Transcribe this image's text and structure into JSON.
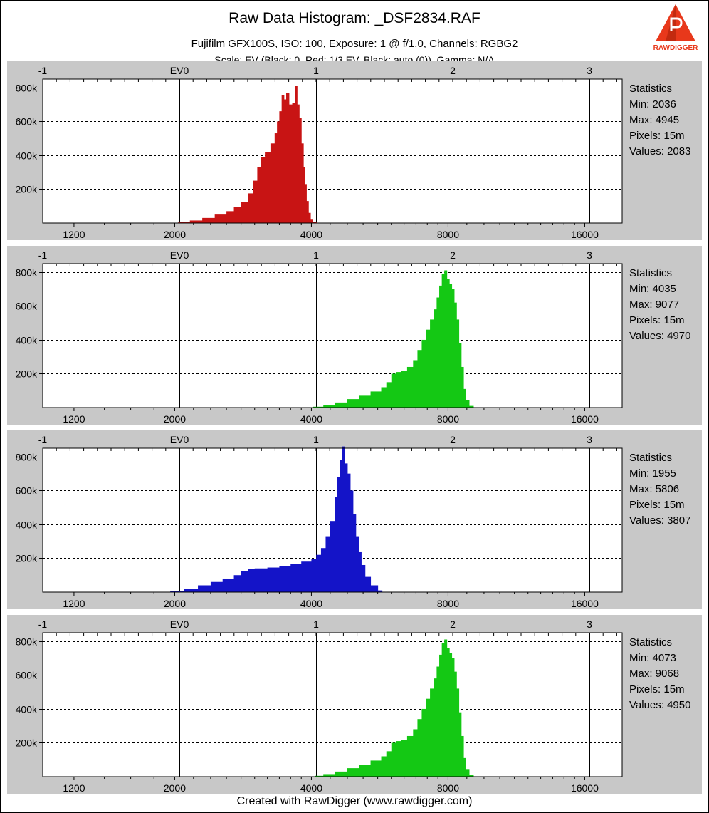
{
  "title": "Raw Data Histogram: _DSF2834.RAF",
  "subtitle": "Fujifilm GFX100S, ISO: 100, Exposure: 1 @ f/1.0, Channels: RGBG2",
  "footer": "Created with RawDigger (www.rawdigger.com)",
  "logo": {
    "text": "RAWDIGGER",
    "accent": "#e8381b"
  },
  "colors": {
    "panel_bg": "#c8c8c8",
    "red": "#c81414",
    "green": "#14c814",
    "blue": "#1414c8"
  },
  "chart_data": [
    {
      "type": "bar",
      "channel": "R",
      "color": "#c81414",
      "x_scale": "log2",
      "xticks": [
        "1200",
        "2000",
        "4000",
        "8000",
        "16000"
      ],
      "ev_ticks": [
        "-1",
        "EV0",
        "1",
        "2",
        "3"
      ],
      "yticks": [
        "200k",
        "400k",
        "600k",
        "800k"
      ],
      "ylim": [
        0,
        850000
      ],
      "x": [
        2036,
        2160,
        2300,
        2450,
        2600,
        2700,
        2800,
        2900,
        2980,
        3040,
        3100,
        3160,
        3250,
        3320,
        3360,
        3400,
        3440,
        3480,
        3520,
        3570,
        3630,
        3680,
        3720,
        3760,
        3800,
        3840,
        3870,
        3900,
        3940,
        3980,
        4020
      ],
      "values": [
        5000,
        15000,
        30000,
        50000,
        70000,
        95000,
        125000,
        175000,
        250000,
        330000,
        390000,
        420000,
        470000,
        530000,
        600000,
        660000,
        755000,
        730000,
        770000,
        700000,
        710000,
        810000,
        700000,
        620000,
        470000,
        330000,
        230000,
        130000,
        60000,
        20000,
        5000
      ],
      "stats": {
        "label": "Statistics",
        "min": "Min: 2036",
        "max": "Max: 4945",
        "pixels": "Pixels: 15m",
        "values": "Values: 2083"
      }
    },
    {
      "type": "bar",
      "channel": "G",
      "color": "#14c814",
      "x_scale": "log2",
      "xticks": [
        "1200",
        "2000",
        "4000",
        "8000",
        "16000"
      ],
      "ev_ticks": [
        "-1",
        "EV0",
        "1",
        "2",
        "3"
      ],
      "yticks": [
        "200k",
        "400k",
        "600k",
        "800k"
      ],
      "ylim": [
        0,
        850000
      ],
      "x": [
        4035,
        4250,
        4500,
        4800,
        5100,
        5400,
        5700,
        5850,
        6000,
        6150,
        6300,
        6500,
        6700,
        6850,
        7000,
        7150,
        7300,
        7450,
        7550,
        7650,
        7750,
        7850,
        7950,
        8050,
        8150,
        8250,
        8350,
        8450,
        8550,
        8650,
        8750,
        8900
      ],
      "values": [
        5000,
        15000,
        30000,
        50000,
        70000,
        95000,
        120000,
        150000,
        200000,
        210000,
        215000,
        240000,
        280000,
        340000,
        400000,
        460000,
        520000,
        580000,
        650000,
        720000,
        790000,
        810000,
        760000,
        730000,
        700000,
        620000,
        520000,
        380000,
        240000,
        110000,
        45000,
        10000
      ],
      "stats": {
        "label": "Statistics",
        "min": "Min: 4035",
        "max": "Max: 9077",
        "pixels": "Pixels: 15m",
        "values": "Values: 4970"
      }
    },
    {
      "type": "bar",
      "channel": "B",
      "color": "#1414c8",
      "x_scale": "log2",
      "xticks": [
        "1200",
        "2000",
        "4000",
        "8000",
        "16000"
      ],
      "ev_ticks": [
        "-1",
        "EV0",
        "1",
        "2",
        "3"
      ],
      "yticks": [
        "200k",
        "400k",
        "600k",
        "800k"
      ],
      "ylim": [
        0,
        850000
      ],
      "x": [
        1955,
        2100,
        2250,
        2400,
        2550,
        2700,
        2800,
        2900,
        3000,
        3200,
        3400,
        3600,
        3800,
        4000,
        4100,
        4200,
        4300,
        4400,
        4500,
        4560,
        4620,
        4680,
        4740,
        4800,
        4870,
        4940,
        5010,
        5080,
        5150,
        5250,
        5400,
        5600
      ],
      "values": [
        5000,
        20000,
        40000,
        60000,
        80000,
        100000,
        125000,
        135000,
        140000,
        145000,
        155000,
        165000,
        180000,
        195000,
        220000,
        260000,
        330000,
        420000,
        560000,
        680000,
        780000,
        860000,
        760000,
        700000,
        600000,
        460000,
        330000,
        240000,
        160000,
        90000,
        40000,
        10000
      ],
      "stats": {
        "label": "Statistics",
        "min": "Min: 1955",
        "max": "Max: 5806",
        "pixels": "Pixels: 15m",
        "values": "Values: 3807"
      }
    },
    {
      "type": "bar",
      "channel": "G2",
      "color": "#14c814",
      "x_scale": "log2",
      "xticks": [
        "1200",
        "2000",
        "4000",
        "8000",
        "16000"
      ],
      "ev_ticks": [
        "-1",
        "EV0",
        "1",
        "2",
        "3"
      ],
      "yticks": [
        "200k",
        "400k",
        "600k",
        "800k"
      ],
      "ylim": [
        0,
        850000
      ],
      "x": [
        4073,
        4250,
        4500,
        4800,
        5100,
        5400,
        5700,
        5850,
        6000,
        6150,
        6300,
        6500,
        6700,
        6850,
        7000,
        7150,
        7300,
        7450,
        7550,
        7650,
        7750,
        7850,
        7950,
        8050,
        8150,
        8250,
        8350,
        8450,
        8550,
        8650,
        8750,
        8900
      ],
      "values": [
        5000,
        15000,
        30000,
        50000,
        70000,
        95000,
        120000,
        150000,
        200000,
        210000,
        215000,
        240000,
        280000,
        340000,
        400000,
        460000,
        520000,
        580000,
        650000,
        720000,
        790000,
        810000,
        760000,
        730000,
        700000,
        620000,
        520000,
        380000,
        240000,
        110000,
        45000,
        10000
      ],
      "stats": {
        "label": "Statistics",
        "min": "Min: 4073",
        "max": "Max: 9068",
        "pixels": "Pixels: 15m",
        "values": "Values: 4950"
      }
    }
  ]
}
